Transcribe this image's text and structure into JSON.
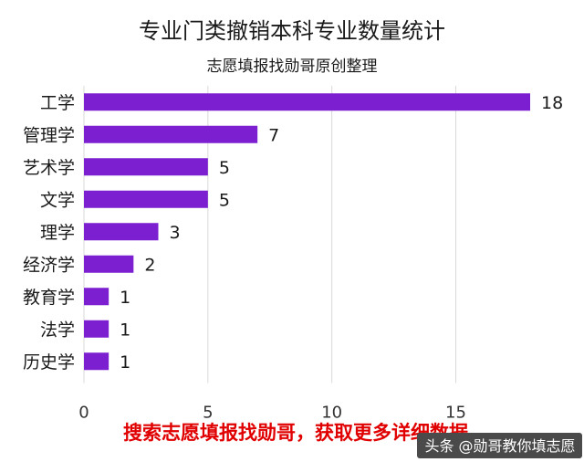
{
  "colors": {
    "bar": "#7b1fd1",
    "grid": "#d9d9d9",
    "footer": "#e00000",
    "watermark_bg": "#4a4a4a"
  },
  "footer_text": "搜索志愿填报找勋哥，获取更多详细数据",
  "watermark_text": "头条 @勋哥教你填志愿",
  "chart_data": {
    "type": "bar",
    "orientation": "horizontal",
    "title": "专业门类撤销本科专业数量统计",
    "subtitle": "志愿填报找勋哥原创整理",
    "categories": [
      "工学",
      "管理学",
      "艺术学",
      "文学",
      "理学",
      "经济学",
      "教育学",
      "法学",
      "历史学"
    ],
    "values": [
      18,
      7,
      5,
      5,
      3,
      2,
      1,
      1,
      1
    ],
    "xlim": [
      0,
      18
    ],
    "xticks": [
      0,
      5,
      10,
      15
    ],
    "grid": true,
    "legend": "none"
  }
}
